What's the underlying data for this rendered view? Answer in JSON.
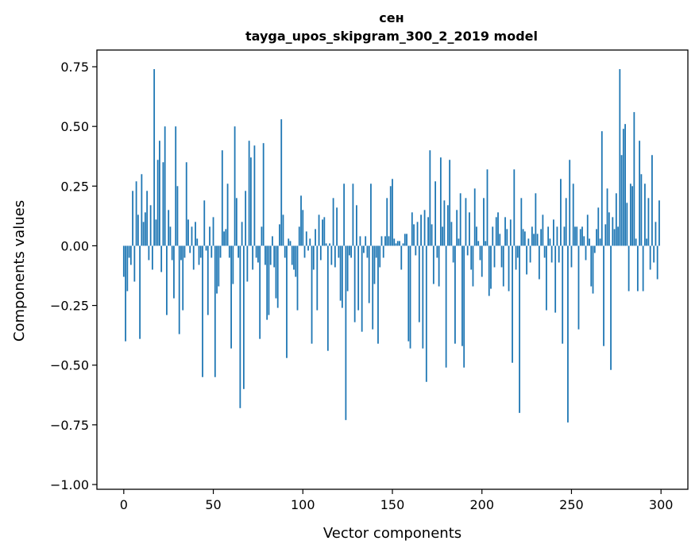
{
  "chart_data": {
    "type": "bar",
    "title": "сен",
    "subtitle": "tayga_upos_skipgram_300_2_2019 model",
    "xlabel": "Vector components",
    "ylabel": "Components values",
    "xlim": [
      -15,
      315
    ],
    "ylim": [
      -1.02,
      0.82
    ],
    "xticks": [
      0,
      50,
      100,
      150,
      200,
      250,
      300
    ],
    "xtick_labels": [
      "0",
      "50",
      "100",
      "150",
      "200",
      "250",
      "300"
    ],
    "yticks": [
      0.75,
      0.5,
      0.25,
      0.0,
      -0.25,
      -0.5,
      -0.75,
      -1.0
    ],
    "ytick_labels": [
      "0.75",
      "0.50",
      "0.25",
      "0.00",
      "−0.25",
      "−0.50",
      "−0.75",
      "−1.00"
    ],
    "bar_color": "#1f77b4",
    "grid": false,
    "values": [
      -0.13,
      -0.4,
      -0.19,
      -0.05,
      -0.08,
      0.23,
      -0.15,
      0.27,
      0.13,
      -0.39,
      0.3,
      0.1,
      0.14,
      0.23,
      -0.06,
      0.17,
      -0.1,
      0.74,
      0.11,
      0.36,
      0.44,
      -0.11,
      0.35,
      0.5,
      -0.29,
      0.15,
      0.08,
      -0.06,
      -0.22,
      0.5,
      0.25,
      -0.37,
      -0.06,
      -0.27,
      -0.05,
      0.35,
      0.11,
      -0.03,
      0.08,
      -0.1,
      0.1,
      0.03,
      -0.08,
      -0.05,
      -0.55,
      0.19,
      -0.02,
      -0.29,
      0.08,
      -0.05,
      0.12,
      -0.55,
      -0.2,
      -0.17,
      -0.05,
      0.4,
      0.06,
      0.07,
      0.26,
      -0.05,
      -0.43,
      -0.16,
      0.5,
      0.2,
      -0.05,
      -0.68,
      0.1,
      -0.6,
      0.23,
      -0.15,
      0.44,
      0.37,
      -0.1,
      0.42,
      -0.05,
      -0.07,
      -0.39,
      0.08,
      0.43,
      -0.08,
      -0.31,
      -0.29,
      -0.08,
      0.04,
      -0.09,
      -0.22,
      -0.26,
      0.09,
      0.53,
      0.13,
      -0.05,
      -0.47,
      0.03,
      0.02,
      -0.08,
      -0.1,
      -0.13,
      -0.27,
      0.08,
      0.21,
      0.15,
      -0.05,
      0.06,
      -0.02,
      0.03,
      -0.41,
      -0.1,
      0.07,
      -0.27,
      0.13,
      -0.06,
      0.11,
      0.12,
      0.01,
      -0.44,
      0.01,
      -0.08,
      0.2,
      -0.09,
      0.16,
      -0.05,
      -0.23,
      -0.26,
      0.26,
      -0.73,
      -0.19,
      -0.04,
      -0.05,
      0.26,
      -0.32,
      0.17,
      -0.27,
      0.04,
      -0.36,
      -0.03,
      0.04,
      -0.05,
      -0.24,
      0.26,
      -0.35,
      -0.16,
      -0.05,
      -0.41,
      -0.09,
      0.04,
      -0.05,
      0.04,
      0.2,
      0.04,
      0.25,
      0.28,
      0.03,
      0.01,
      0.02,
      0.02,
      -0.1,
      0.01,
      0.05,
      0.05,
      -0.4,
      -0.43,
      0.14,
      0.09,
      -0.04,
      0.1,
      -0.32,
      0.13,
      -0.43,
      0.15,
      -0.57,
      0.12,
      0.4,
      0.09,
      -0.16,
      0.27,
      -0.05,
      -0.17,
      0.37,
      0.08,
      0.19,
      -0.51,
      0.17,
      0.36,
      0.1,
      -0.07,
      -0.41,
      0.15,
      0.03,
      0.22,
      -0.42,
      -0.51,
      0.2,
      -0.04,
      0.14,
      -0.1,
      -0.17,
      0.24,
      0.08,
      0.02,
      -0.06,
      -0.13,
      0.2,
      0.02,
      0.32,
      -0.21,
      -0.18,
      0.08,
      -0.09,
      0.12,
      0.14,
      0.05,
      -0.09,
      -0.17,
      0.12,
      0.07,
      -0.19,
      0.11,
      -0.49,
      0.32,
      -0.1,
      -0.05,
      -0.7,
      0.2,
      0.07,
      0.06,
      -0.12,
      0.03,
      -0.07,
      0.08,
      0.05,
      0.22,
      0.05,
      -0.14,
      0.07,
      0.13,
      -0.05,
      -0.27,
      0.08,
      0.03,
      -0.07,
      0.11,
      -0.28,
      0.08,
      -0.07,
      0.28,
      -0.41,
      0.08,
      0.2,
      -0.74,
      0.36,
      -0.09,
      0.26,
      0.08,
      0.08,
      -0.35,
      0.07,
      0.08,
      0.04,
      -0.06,
      0.13,
      0.03,
      -0.17,
      -0.2,
      -0.03,
      0.07,
      0.16,
      0.03,
      0.48,
      -0.42,
      0.09,
      0.24,
      0.14,
      -0.52,
      0.12,
      0.07,
      0.22,
      0.08,
      0.74,
      0.38,
      0.49,
      0.51,
      0.18,
      -0.19,
      0.26,
      0.25,
      0.56,
      0.03,
      -0.19,
      0.44,
      0.3,
      -0.19,
      0.26,
      0.03,
      0.2,
      -0.1,
      0.38,
      -0.07,
      0.1,
      -0.14,
      0.19
    ]
  }
}
